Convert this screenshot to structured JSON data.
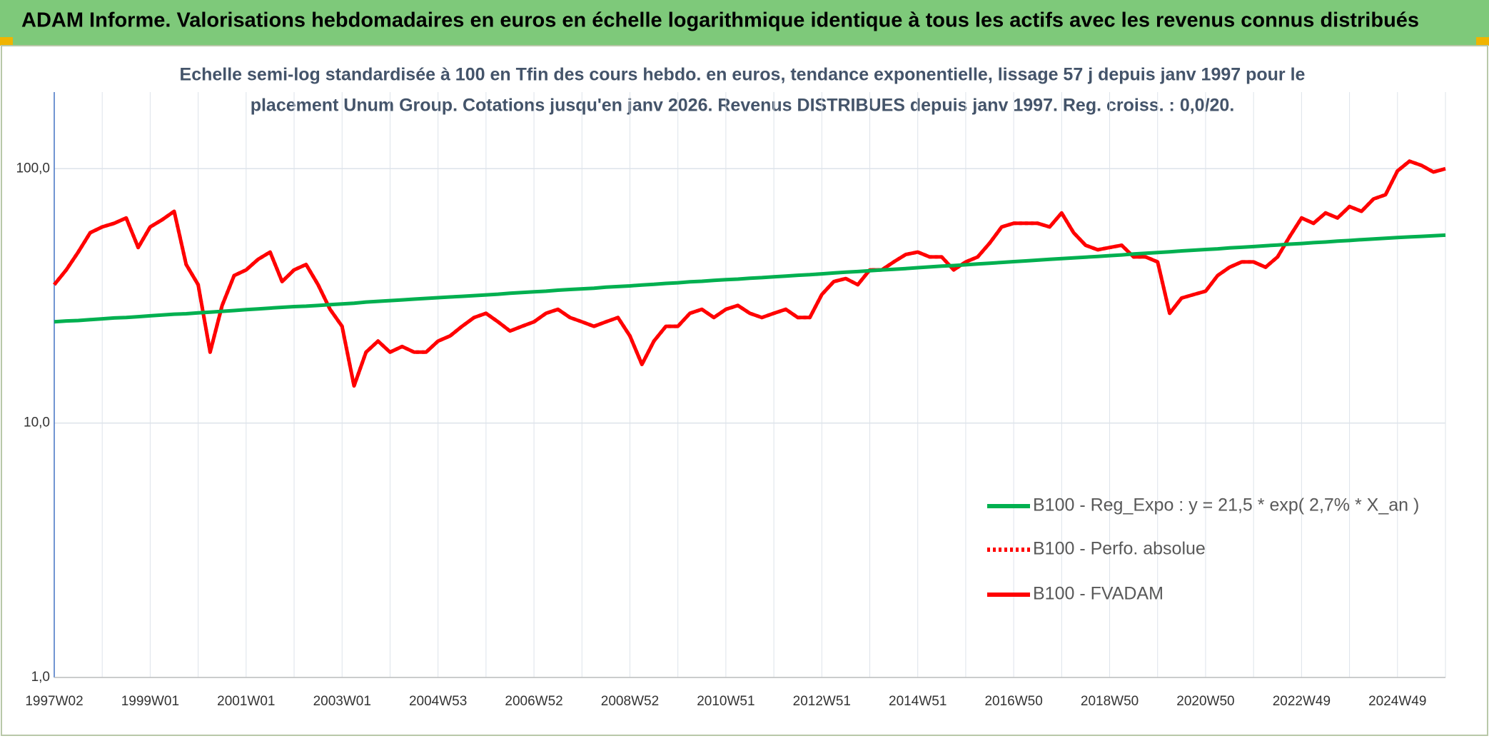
{
  "chart_data": {
    "type": "line",
    "title": "ADAM Informe. Valorisations hebdomadaires en euros en échelle logarithmique identique à tous les actifs avec les revenus connus distribués",
    "subtitle": [
      "Echelle semi-log standardisée à 100 en Tfin des cours hebdo. en euros, tendance exponentielle, lissage 57 j depuis janv 1997 pour le",
      "placement Unum Group. Cotations jusqu'en janv 2026. Revenus DISTRIBUES depuis janv 1997. Reg. croiss. : 0,0/20."
    ],
    "categories": [
      "1997W02",
      null,
      null,
      null,
      null,
      null,
      null,
      null,
      "1999W01",
      null,
      null,
      null,
      null,
      null,
      null,
      null,
      "2001W01",
      null,
      null,
      null,
      null,
      null,
      null,
      null,
      "2003W01",
      null,
      null,
      null,
      null,
      null,
      null,
      null,
      "2004W53",
      null,
      null,
      null,
      null,
      null,
      null,
      null,
      "2006W52",
      null,
      null,
      null,
      null,
      null,
      null,
      null,
      "2008W52",
      null,
      null,
      null,
      null,
      null,
      null,
      null,
      "2010W51",
      null,
      null,
      null,
      null,
      null,
      null,
      null,
      "2012W51",
      null,
      null,
      null,
      null,
      null,
      null,
      null,
      "2014W51",
      null,
      null,
      null,
      null,
      null,
      null,
      null,
      "2016W50",
      null,
      null,
      null,
      null,
      null,
      null,
      null,
      "2018W50",
      null,
      null,
      null,
      null,
      null,
      null,
      null,
      "2020W50",
      null,
      null,
      null,
      null,
      null,
      null,
      null,
      "2022W49",
      null,
      null,
      null,
      null,
      null,
      null,
      null,
      "2024W49",
      null,
      null,
      null,
      null
    ],
    "series": [
      {
        "name": "B100 - Reg_Expo : y = 21,5 * exp( 2,7% *  X_an )",
        "color": "#00b050",
        "style": "solid",
        "values": [
          25.0,
          25.2,
          25.3,
          25.5,
          25.7,
          25.9,
          26.0,
          26.2,
          26.4,
          26.6,
          26.8,
          26.9,
          27.1,
          27.3,
          27.5,
          27.7,
          27.9,
          28.1,
          28.3,
          28.5,
          28.7,
          28.8,
          29.0,
          29.2,
          29.4,
          29.6,
          29.9,
          30.1,
          30.3,
          30.5,
          30.7,
          30.9,
          31.1,
          31.3,
          31.5,
          31.7,
          31.9,
          32.1,
          32.4,
          32.6,
          32.8,
          33.0,
          33.3,
          33.5,
          33.7,
          33.9,
          34.2,
          34.4,
          34.6,
          34.9,
          35.1,
          35.4,
          35.6,
          35.9,
          36.1,
          36.4,
          36.6,
          36.8,
          37.1,
          37.3,
          37.6,
          37.8,
          38.1,
          38.3,
          38.6,
          38.9,
          39.2,
          39.4,
          39.7,
          40.0,
          40.2,
          40.5,
          40.8,
          41.1,
          41.4,
          41.6,
          41.9,
          42.2,
          42.5,
          42.8,
          43.1,
          43.4,
          43.7,
          44.0,
          44.3,
          44.6,
          44.9,
          45.2,
          45.5,
          45.8,
          46.2,
          46.5,
          46.8,
          47.1,
          47.5,
          47.8,
          48.1,
          48.4,
          48.8,
          49.1,
          49.4,
          49.8,
          50.1,
          50.5,
          50.8,
          51.2,
          51.5,
          51.9,
          52.2,
          52.6,
          52.9,
          53.3,
          53.6,
          53.9,
          54.2,
          54.5,
          54.8
        ]
      },
      {
        "name": "B100 - Perfo. absolue",
        "color": "#ff0000",
        "style": "dotted",
        "values": [
          35,
          40,
          47,
          56,
          59,
          61,
          64,
          49,
          59,
          63,
          68,
          42,
          35,
          19,
          29,
          38,
          40,
          44,
          47,
          36,
          40,
          42,
          35,
          28,
          24,
          14,
          19,
          21,
          19,
          20,
          19,
          19,
          21,
          22,
          24,
          26,
          27,
          25,
          23,
          24,
          25,
          27,
          28,
          26,
          25,
          24,
          25,
          26,
          22,
          17,
          21,
          24,
          24,
          27,
          28,
          26,
          28,
          29,
          27,
          26,
          27,
          28,
          26,
          26,
          32,
          36,
          37,
          35,
          40,
          40,
          43,
          46,
          47,
          45,
          45,
          40,
          43,
          45,
          51,
          59,
          61,
          61,
          61,
          59,
          67,
          56,
          50,
          48,
          49,
          50,
          45,
          45,
          43,
          27,
          31,
          32,
          33,
          38,
          41,
          43,
          43,
          41,
          45,
          54,
          64,
          61,
          67,
          64,
          71,
          68,
          76,
          79,
          98,
          107,
          103,
          97,
          100
        ]
      },
      {
        "name": "B100 - FVADAM",
        "color": "#ff0000",
        "style": "solid",
        "values": [
          35,
          40,
          47,
          56,
          59,
          61,
          64,
          49,
          59,
          63,
          68,
          42,
          35,
          19,
          29,
          38,
          40,
          44,
          47,
          36,
          40,
          42,
          35,
          28,
          24,
          14,
          19,
          21,
          19,
          20,
          19,
          19,
          21,
          22,
          24,
          26,
          27,
          25,
          23,
          24,
          25,
          27,
          28,
          26,
          25,
          24,
          25,
          26,
          22,
          17,
          21,
          24,
          24,
          27,
          28,
          26,
          28,
          29,
          27,
          26,
          27,
          28,
          26,
          26,
          32,
          36,
          37,
          35,
          40,
          40,
          43,
          46,
          47,
          45,
          45,
          40,
          43,
          45,
          51,
          59,
          61,
          61,
          61,
          59,
          67,
          56,
          50,
          48,
          49,
          50,
          45,
          45,
          43,
          27,
          31,
          32,
          33,
          38,
          41,
          43,
          43,
          41,
          45,
          54,
          64,
          61,
          67,
          64,
          71,
          68,
          76,
          79,
          98,
          107,
          103,
          97,
          100
        ]
      }
    ],
    "ylim": [
      1,
      200
    ],
    "log_y": true,
    "yticks": [
      {
        "value": 1,
        "label": "1,0"
      },
      {
        "value": 10,
        "label": "10,0"
      },
      {
        "value": 100,
        "label": "100,0"
      }
    ],
    "grid": true,
    "legend": "lower right"
  }
}
